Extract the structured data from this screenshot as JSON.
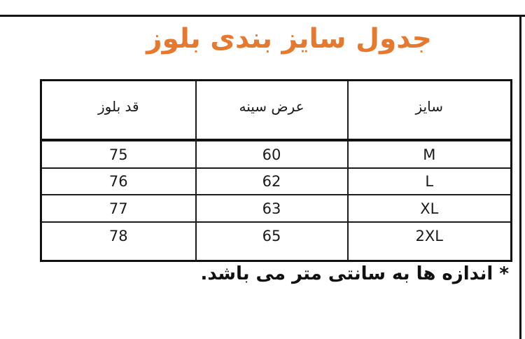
{
  "page": {
    "title": "جدول سایز بندی بلوز",
    "footnote": "* اندازه ها به سانتی متر می باشد.",
    "colors": {
      "title_orange": "#e6792d",
      "border_black": "#141414",
      "background": "#ffffff"
    }
  },
  "size_table": {
    "columns": [
      {
        "id": "size",
        "label": "سایز"
      },
      {
        "id": "chest_width",
        "label": "عرض سینه"
      },
      {
        "id": "blouse_length",
        "label": "قد بلوز"
      }
    ],
    "rows": [
      {
        "size": "M",
        "chest_width": "60",
        "blouse_length": "75"
      },
      {
        "size": "L",
        "chest_width": "62",
        "blouse_length": "76"
      },
      {
        "size": "XL",
        "chest_width": "63",
        "blouse_length": "77"
      },
      {
        "size": "2XL",
        "chest_width": "65",
        "blouse_length": "78"
      }
    ]
  }
}
